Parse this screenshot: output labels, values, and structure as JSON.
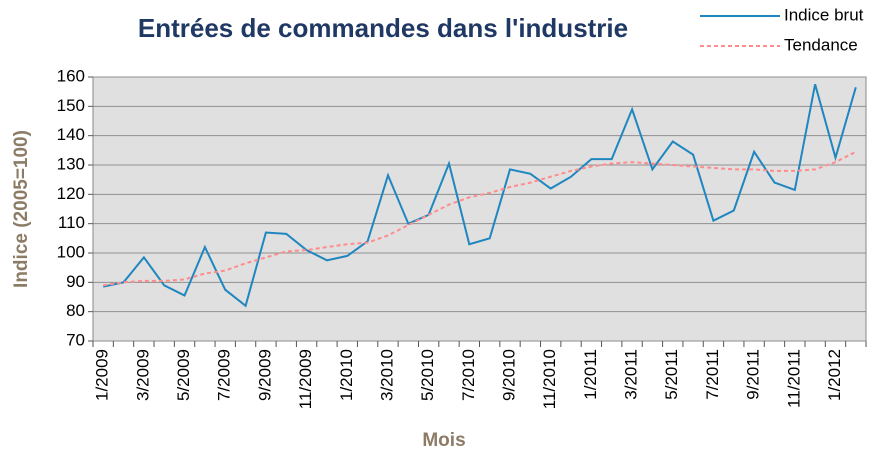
{
  "chart_data": {
    "type": "line",
    "title": "Entrées de commandes dans l'industrie",
    "xlabel": "Mois",
    "ylabel": "Indice (2005=100)",
    "categories": [
      "1/2009",
      null,
      "3/2009",
      null,
      "5/2009",
      null,
      "7/2009",
      null,
      "9/2009",
      null,
      "11/2009",
      null,
      "1/2010",
      null,
      "3/2010",
      null,
      "5/2010",
      null,
      "7/2010",
      null,
      "9/2010",
      null,
      "11/2010",
      null,
      "1/2011",
      null,
      "3/2011",
      null,
      "5/2011",
      null,
      "7/2011",
      null,
      "9/2011",
      null,
      "11/2011",
      null,
      "1/2012",
      null
    ],
    "series": [
      {
        "name": "Indice brut",
        "color": "#1f86c0",
        "style": "solid",
        "values": [
          88.5,
          90,
          98.5,
          89,
          85.5,
          102,
          87.5,
          82,
          107,
          106.5,
          101,
          97.5,
          99,
          104,
          126.5,
          110,
          113,
          130.5,
          103,
          105,
          128.5,
          127,
          122,
          126,
          132,
          132,
          149,
          128.5,
          138,
          133.5,
          111,
          114.5,
          134.5,
          124,
          121.5,
          157.5,
          132.5,
          156.5
        ]
      },
      {
        "name": "Tendance",
        "color": "#ff8c8c",
        "style": "dashed",
        "values": [
          89,
          90,
          90.5,
          90.5,
          91,
          93,
          94,
          96.5,
          98.5,
          100.5,
          101,
          102,
          103,
          103.5,
          106,
          109.5,
          113,
          116.5,
          119,
          120.5,
          122.5,
          124,
          126,
          128,
          129.5,
          130.5,
          131,
          130.5,
          130,
          129.5,
          129,
          128.5,
          128.5,
          128,
          128,
          128.5,
          131,
          134.5
        ]
      }
    ],
    "ylim": [
      70,
      160
    ],
    "yticks": [
      70,
      80,
      90,
      100,
      110,
      120,
      130,
      140,
      150,
      160
    ],
    "grid": true,
    "legend": "top-right",
    "plot_background": "#e0e0e0"
  }
}
